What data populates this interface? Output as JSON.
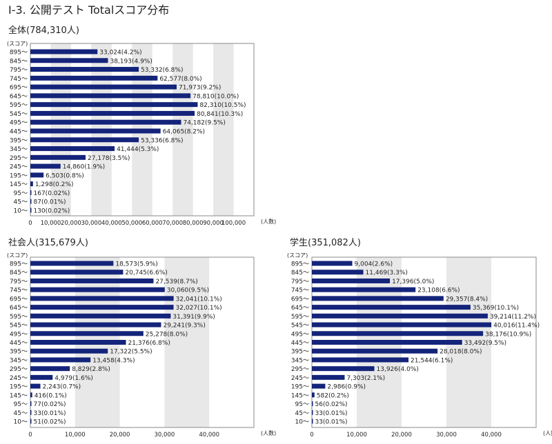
{
  "page_title": "Ⅰ-3. 公開テスト Totalスコア分布",
  "chart_data": [
    {
      "type": "bar",
      "title": "全体(784,310人)",
      "ylabel": "(スコア)",
      "xlabel": "(人数)",
      "categories": [
        "895～",
        "845～",
        "795～",
        "745～",
        "695～",
        "645～",
        "595～",
        "545～",
        "495～",
        "445～",
        "395～",
        "345～",
        "295～",
        "245～",
        "195～",
        "145～",
        "95～",
        "45～",
        "10～"
      ],
      "values": [
        33024,
        38193,
        53332,
        62577,
        71973,
        78810,
        82310,
        80841,
        74182,
        64065,
        53336,
        41444,
        27178,
        14860,
        6503,
        1298,
        167,
        87,
        130
      ],
      "labels": [
        "33,024(4.2%)",
        "38,193(4.9%)",
        "53,332(6.8%)",
        "62,577(8.0%)",
        "71,973(9.2%)",
        "78,810(10.0%)",
        "82,310(10.5%)",
        "80,841(10.3%)",
        "74,182(9.5%)",
        "64,065(8.2%)",
        "53,336(6.8%)",
        "41,444(5.3%)",
        "27,178(3.5%)",
        "14,860(1.9%)",
        "6,503(0.8%)",
        "1,298(0.2%)",
        "167(0.02%)",
        "87(0.01%)",
        "130(0.02%)"
      ],
      "xlim": [
        0,
        110000
      ],
      "xticks": [
        0,
        10000,
        20000,
        30000,
        40000,
        50000,
        60000,
        70000,
        80000,
        90000,
        100000
      ],
      "xtick_labels": [
        "0",
        "10,000",
        "20,000",
        "30,000",
        "40,000",
        "50,000",
        "60,000",
        "70,000",
        "80,000",
        "90,000",
        "100,000"
      ],
      "grid": "alternating vertical bands",
      "bar_color": "#14247a",
      "band_color": "#e8e8e8"
    },
    {
      "type": "bar",
      "title": "社会人(315,679人)",
      "ylabel": "(スコア)",
      "xlabel": "(人数)",
      "categories": [
        "895～",
        "845～",
        "795～",
        "745～",
        "695～",
        "645～",
        "595～",
        "545～",
        "495～",
        "445～",
        "395～",
        "345～",
        "295～",
        "245～",
        "195～",
        "145～",
        "95～",
        "45～",
        "10～"
      ],
      "values": [
        18573,
        20745,
        27539,
        30060,
        32041,
        32027,
        31391,
        29241,
        25278,
        21376,
        17322,
        13458,
        8829,
        4979,
        2243,
        416,
        77,
        33,
        51
      ],
      "labels": [
        "18,573(5.9%)",
        "20,745(6.6%)",
        "27,539(8.7%)",
        "30,060(9.5%)",
        "32,041(10.1%)",
        "32,027(10.1%)",
        "31,391(9.9%)",
        "29,241(9.3%)",
        "25,278(8.0%)",
        "21,376(6.8%)",
        "17,322(5.5%)",
        "13,458(4.3%)",
        "8,829(2.8%)",
        "4,979(1.6%)",
        "2,243(0.7%)",
        "416(0.1%)",
        "77(0.02%)",
        "33(0.01%)",
        "51(0.02%)"
      ],
      "xlim": [
        0,
        50000
      ],
      "xticks": [
        0,
        10000,
        20000,
        30000,
        40000
      ],
      "xtick_labels": [
        "0",
        "10,000",
        "20,000",
        "30,000",
        "40,000"
      ],
      "grid": "alternating vertical bands",
      "bar_color": "#14247a",
      "band_color": "#e8e8e8"
    },
    {
      "type": "bar",
      "title": "学生(351,082人)",
      "ylabel": "(スコア)",
      "xlabel": "(人数)",
      "categories": [
        "895～",
        "845～",
        "795～",
        "745～",
        "695～",
        "645～",
        "595～",
        "545～",
        "495～",
        "445～",
        "395～",
        "345～",
        "295～",
        "245～",
        "195～",
        "145～",
        "95～",
        "45～",
        "10～"
      ],
      "values": [
        9004,
        11469,
        17396,
        23108,
        29357,
        35369,
        39214,
        40016,
        38176,
        33492,
        28018,
        21544,
        13926,
        7303,
        2986,
        582,
        56,
        33,
        33
      ],
      "labels": [
        "9,004(2.6%)",
        "11,469(3.3%)",
        "17,396(5.0%)",
        "23,108(6.6%)",
        "29,357(8.4%)",
        "35,369(10.1%)",
        "39,214(11.2%)",
        "40,016(11.4%)",
        "38,176(10.9%)",
        "33,492(9.5%)",
        "28,018(8.0%)",
        "21,544(6.1%)",
        "13,926(4.0%)",
        "7,303(2.1%)",
        "2,986(0.9%)",
        "582(0.2%)",
        "56(0.02%)",
        "33(0.01%)",
        "33(0.01%)"
      ],
      "xlim": [
        0,
        50000
      ],
      "xticks": [
        0,
        10000,
        20000,
        30000,
        40000
      ],
      "xtick_labels": [
        "0",
        "10,000",
        "20,000",
        "30,000",
        "40,000"
      ],
      "grid": "alternating vertical bands",
      "bar_color": "#14247a",
      "band_color": "#e8e8e8"
    }
  ]
}
